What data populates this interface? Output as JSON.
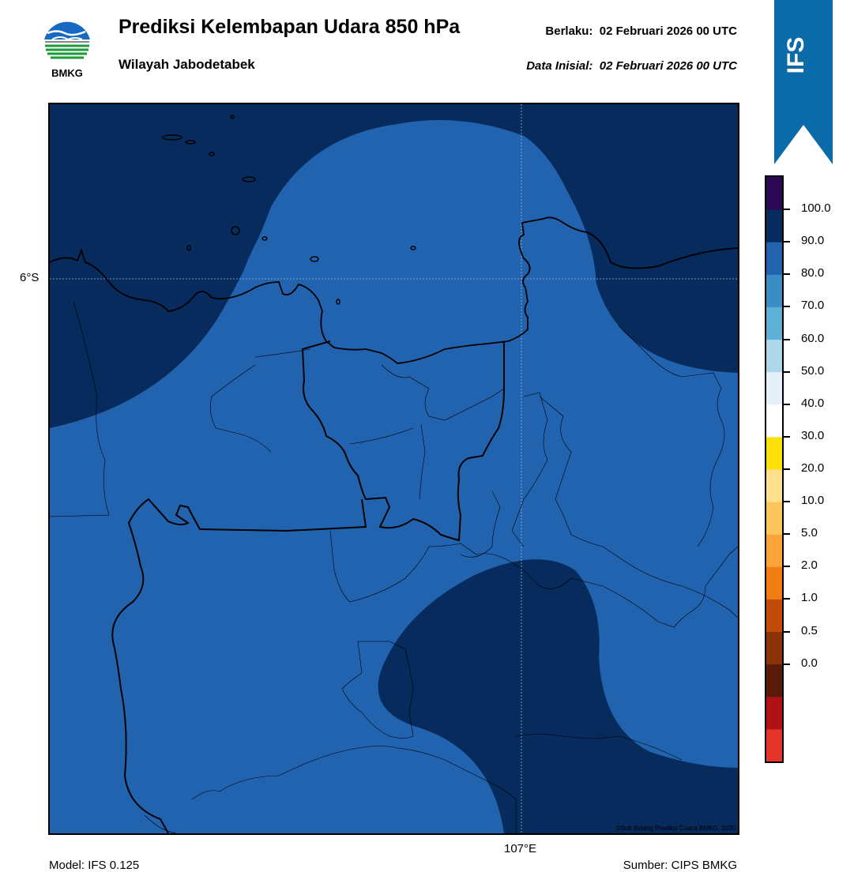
{
  "header": {
    "title": "Prediksi Kelembapan Udara 850 hPa",
    "subtitle": "Wilayah Jabodetabek",
    "valid": "Berlaku:  02 Februari 2026 00 UTC",
    "initial": "Data Inisial:  02 Februari 2026 00 UTC"
  },
  "logo": {
    "text": "BMKG",
    "icon": "bmkg-logo"
  },
  "ribbon": {
    "text": "IFS",
    "color": "#0b6aa8"
  },
  "map": {
    "lat_label": "6°S",
    "lon_label": "107°E",
    "copyright": "©Sub Bidang Prediksi Cuaca BMKG, 2020",
    "fill_dark": "#062b5c",
    "fill_mid": "#2163ae"
  },
  "colorbar": {
    "labels": [
      "100.0",
      "90.0",
      "80.0",
      "70.0",
      "60.0",
      "50.0",
      "40.0",
      "30.0",
      "20.0",
      "10.0",
      "5.0",
      "2.0",
      "1.0",
      "0.5",
      "0.0"
    ],
    "colors": [
      "#e5352b",
      "#b01117",
      "#5a1a09",
      "#8a3307",
      "#c34a06",
      "#f07c13",
      "#fda33a",
      "#fdc55b",
      "#fde08e",
      "#fbe106",
      "#ffffff",
      "#e4f0f8",
      "#aed8ea",
      "#5fb0d6",
      "#3a8cc4",
      "#2163ae",
      "#062b5c",
      "#2a0853"
    ]
  },
  "footer": {
    "model": "Model: IFS 0.125",
    "source": "Sumber: CIPS BMKG"
  }
}
